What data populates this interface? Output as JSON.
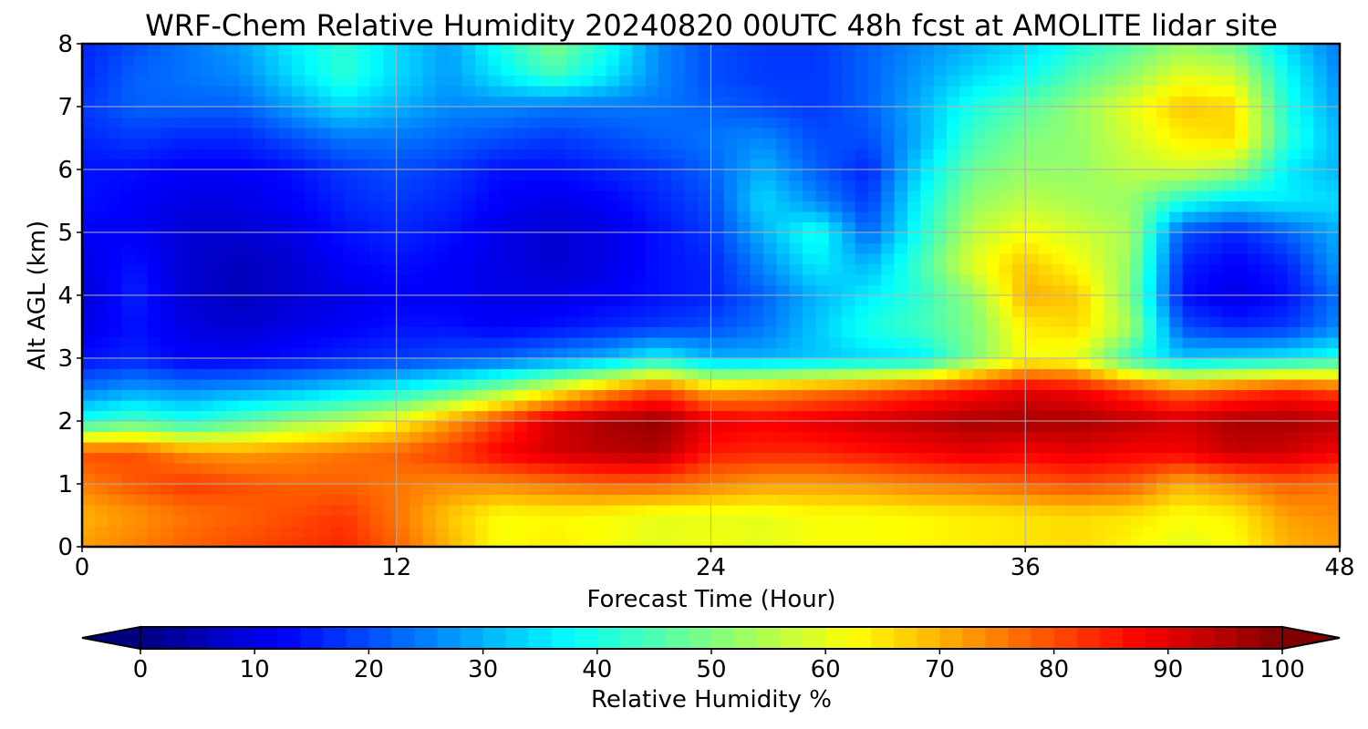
{
  "chart_data": {
    "type": "heatmap",
    "title": "WRF-Chem Relative Humidity 20240820 00UTC 48h fcst at AMOLITE lidar site",
    "xlabel": "Forecast Time (Hour)",
    "ylabel": "Alt AGL (km)",
    "xlim": [
      0,
      48
    ],
    "ylim": [
      0,
      8
    ],
    "x_ticks": [
      0,
      12,
      24,
      36,
      48
    ],
    "y_ticks": [
      0,
      1,
      2,
      3,
      4,
      5,
      6,
      7,
      8
    ],
    "grid": true,
    "colormap": "jet",
    "colorbar": {
      "label": "Relative Humidity %",
      "orientation": "horizontal",
      "position": "bottom",
      "range": [
        0,
        100
      ],
      "ticks": [
        0,
        10,
        20,
        30,
        40,
        50,
        60,
        70,
        80,
        90,
        100
      ],
      "extend": "both"
    },
    "x": [
      0,
      2,
      4,
      6,
      8,
      10,
      12,
      14,
      16,
      18,
      20,
      22,
      24,
      26,
      28,
      30,
      32,
      34,
      36,
      38,
      40,
      42,
      44,
      46,
      48
    ],
    "y": [
      0,
      0.5,
      1,
      1.5,
      2,
      2.5,
      3,
      3.5,
      4,
      4.5,
      5,
      5.5,
      6,
      6.5,
      7,
      7.5,
      8
    ],
    "z": [
      [
        72,
        75,
        78,
        80,
        82,
        84,
        78,
        70,
        62,
        64,
        62,
        60,
        62,
        60,
        62,
        62,
        63,
        64,
        65,
        66,
        63,
        60,
        62,
        70,
        72
      ],
      [
        70,
        73,
        76,
        78,
        80,
        82,
        76,
        68,
        62,
        63,
        62,
        60,
        60,
        60,
        62,
        62,
        63,
        64,
        65,
        66,
        65,
        62,
        64,
        72,
        74
      ],
      [
        75,
        79,
        82,
        80,
        78,
        78,
        76,
        74,
        74,
        76,
        78,
        78,
        75,
        72,
        72,
        73,
        75,
        76,
        78,
        80,
        78,
        70,
        74,
        78,
        76
      ],
      [
        80,
        80,
        74,
        72,
        74,
        76,
        78,
        82,
        88,
        92,
        94,
        95,
        85,
        84,
        84,
        86,
        88,
        90,
        88,
        90,
        88,
        88,
        93,
        92,
        88
      ],
      [
        40,
        45,
        40,
        46,
        52,
        56,
        62,
        72,
        82,
        92,
        96,
        98,
        90,
        88,
        90,
        92,
        94,
        96,
        96,
        96,
        94,
        92,
        96,
        96,
        94
      ],
      [
        24,
        28,
        26,
        28,
        30,
        34,
        38,
        44,
        52,
        62,
        72,
        80,
        70,
        72,
        75,
        78,
        82,
        86,
        90,
        88,
        82,
        76,
        80,
        84,
        80
      ],
      [
        14,
        16,
        12,
        12,
        14,
        16,
        18,
        20,
        22,
        26,
        30,
        38,
        30,
        30,
        32,
        34,
        36,
        50,
        62,
        60,
        42,
        32,
        34,
        36,
        40
      ],
      [
        10,
        14,
        10,
        8,
        10,
        12,
        14,
        14,
        12,
        14,
        16,
        18,
        20,
        24,
        32,
        40,
        44,
        50,
        64,
        66,
        54,
        20,
        16,
        18,
        26
      ],
      [
        8,
        16,
        8,
        6,
        8,
        10,
        12,
        12,
        10,
        10,
        12,
        14,
        16,
        22,
        30,
        36,
        42,
        52,
        70,
        68,
        50,
        14,
        10,
        14,
        24
      ],
      [
        10,
        14,
        8,
        6,
        8,
        12,
        14,
        12,
        10,
        8,
        10,
        14,
        16,
        26,
        36,
        30,
        44,
        60,
        68,
        62,
        52,
        16,
        12,
        16,
        28
      ],
      [
        12,
        12,
        8,
        8,
        10,
        14,
        16,
        14,
        10,
        8,
        10,
        14,
        18,
        30,
        40,
        22,
        40,
        56,
        62,
        58,
        54,
        20,
        16,
        22,
        30
      ],
      [
        14,
        12,
        10,
        10,
        12,
        16,
        18,
        16,
        12,
        10,
        12,
        16,
        20,
        34,
        26,
        18,
        38,
        52,
        56,
        54,
        52,
        40,
        34,
        36,
        34
      ],
      [
        14,
        14,
        12,
        12,
        14,
        18,
        20,
        18,
        14,
        14,
        16,
        18,
        22,
        30,
        22,
        16,
        34,
        48,
        52,
        52,
        56,
        58,
        54,
        36,
        30
      ],
      [
        16,
        18,
        16,
        16,
        20,
        24,
        24,
        22,
        20,
        18,
        20,
        22,
        24,
        26,
        20,
        20,
        30,
        44,
        50,
        52,
        58,
        64,
        66,
        42,
        30
      ],
      [
        18,
        22,
        22,
        22,
        28,
        34,
        30,
        26,
        26,
        24,
        24,
        24,
        22,
        20,
        18,
        22,
        30,
        40,
        46,
        52,
        60,
        68,
        66,
        40,
        28
      ],
      [
        16,
        22,
        24,
        26,
        34,
        42,
        34,
        28,
        36,
        44,
        36,
        26,
        20,
        18,
        18,
        22,
        28,
        34,
        38,
        46,
        52,
        60,
        58,
        38,
        26
      ],
      [
        16,
        20,
        24,
        28,
        36,
        42,
        34,
        28,
        40,
        50,
        40,
        26,
        20,
        18,
        18,
        22,
        26,
        30,
        34,
        40,
        46,
        52,
        48,
        34,
        24
      ]
    ]
  }
}
